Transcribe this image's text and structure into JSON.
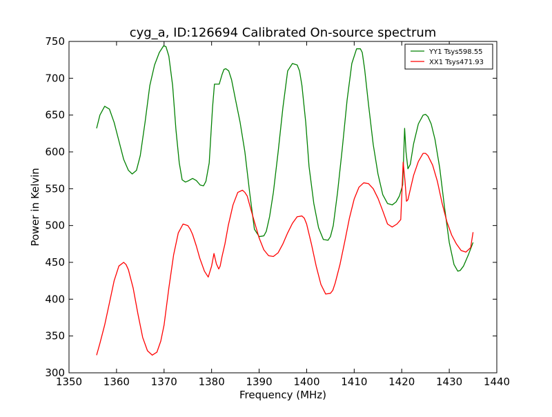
{
  "chart_data": {
    "type": "line",
    "title": "cyg_a, ID:126694 Calibrated On-source spectrum",
    "xlabel": "Frequency (MHz)",
    "ylabel": "Power in Kelvin",
    "xlim": [
      1350,
      1440
    ],
    "ylim": [
      300,
      750
    ],
    "xticks": [
      1350,
      1360,
      1370,
      1380,
      1390,
      1400,
      1410,
      1420,
      1430,
      1440
    ],
    "yticks": [
      300,
      350,
      400,
      450,
      500,
      550,
      600,
      650,
      700,
      750
    ],
    "grid": false,
    "legend_position": "top-right",
    "series": [
      {
        "name": "YY1 Tsys598.55",
        "color": "#008000",
        "x": [
          1355.8,
          1356.5,
          1357.5,
          1358.5,
          1359.5,
          1360.5,
          1361.5,
          1362.5,
          1363.3,
          1364.2,
          1365,
          1366,
          1367,
          1368,
          1369,
          1369.9,
          1370.4,
          1371,
          1371.8,
          1372.5,
          1373.2,
          1373.8,
          1374.5,
          1375.2,
          1376,
          1376.8,
          1377.6,
          1378.3,
          1378.8,
          1379.5,
          1380.2,
          1380.6,
          1381,
          1381.6,
          1382.2,
          1382.6,
          1383,
          1383.6,
          1384.2,
          1385,
          1386,
          1387,
          1388,
          1389,
          1390,
          1391,
          1391.5,
          1392.2,
          1393,
          1394,
          1395,
          1396,
          1397,
          1398,
          1398.5,
          1399,
          1399.8,
          1400.5,
          1401.5,
          1402.5,
          1403.5,
          1404.5,
          1405,
          1405.6,
          1406.5,
          1407.5,
          1408.5,
          1409.5,
          1410.5,
          1411.3,
          1411.7,
          1412.2,
          1413,
          1414,
          1415,
          1416,
          1417,
          1418,
          1418.8,
          1419.5,
          1420.2,
          1420.6,
          1420.9,
          1421.3,
          1421.8,
          1422.5,
          1423.5,
          1424.5,
          1425,
          1425.5,
          1426.2,
          1427,
          1428,
          1429,
          1430,
          1431,
          1431.8,
          1432.3,
          1433,
          1434,
          1435
        ],
        "y": [
          632,
          650,
          662,
          658,
          640,
          615,
          590,
          575,
          570,
          575,
          595,
          640,
          690,
          718,
          735,
          744,
          743,
          730,
          690,
          630,
          585,
          562,
          559,
          561,
          564,
          561,
          555,
          554,
          560,
          585,
          660,
          692,
          692,
          692,
          705,
          712,
          713,
          710,
          698,
          672,
          640,
          600,
          545,
          495,
          485,
          486,
          492,
          512,
          545,
          600,
          660,
          710,
          720,
          718,
          710,
          690,
          640,
          580,
          530,
          497,
          481,
          480,
          485,
          500,
          545,
          605,
          670,
          720,
          740,
          740,
          735,
          712,
          665,
          610,
          570,
          542,
          530,
          528,
          532,
          540,
          555,
          632,
          600,
          577,
          583,
          611,
          638,
          650,
          651,
          648,
          638,
          617,
          578,
          525,
          477,
          447,
          438,
          439,
          445,
          460,
          477
        ]
      },
      {
        "name": "XX1 Tsys471.93",
        "color": "#ff0000",
        "x": [
          1355.8,
          1356.5,
          1357.5,
          1358.5,
          1359.5,
          1360.5,
          1361.5,
          1362,
          1362.5,
          1363.5,
          1364.5,
          1365.5,
          1366.5,
          1367.5,
          1368.5,
          1369.3,
          1370,
          1371,
          1372,
          1373,
          1374,
          1375,
          1375.5,
          1376,
          1376.8,
          1377.5,
          1378.5,
          1379.3,
          1380,
          1380.5,
          1381,
          1381.5,
          1381.8,
          1382.2,
          1382.8,
          1383.5,
          1384.5,
          1385.5,
          1386.5,
          1387,
          1387.5,
          1388,
          1389,
          1390,
          1391,
          1392,
          1393,
          1394,
          1395,
          1396,
          1397,
          1398,
          1399,
          1399.5,
          1400,
          1401,
          1402,
          1403,
          1404,
          1405,
          1405.5,
          1406,
          1407,
          1408,
          1409,
          1410,
          1411,
          1412,
          1413,
          1414,
          1415,
          1416,
          1417,
          1418,
          1419,
          1419.8,
          1420.3,
          1420.7,
          1421,
          1421.3,
          1421.7,
          1422.5,
          1423.5,
          1424.5,
          1425,
          1425.5,
          1426.5,
          1427.5,
          1428.5,
          1429.5,
          1430.5,
          1431.5,
          1432.5,
          1433.5,
          1434.5,
          1435
        ],
        "y": [
          324,
          340,
          365,
          395,
          425,
          445,
          450,
          447,
          440,
          415,
          380,
          348,
          330,
          324,
          328,
          343,
          365,
          415,
          460,
          490,
          502,
          500,
          495,
          488,
          472,
          456,
          438,
          430,
          445,
          462,
          448,
          441,
          445,
          458,
          475,
          500,
          528,
          545,
          548,
          545,
          540,
          528,
          505,
          483,
          467,
          459,
          458,
          463,
          475,
          490,
          503,
          512,
          513,
          510,
          502,
          475,
          445,
          420,
          407,
          408,
          412,
          422,
          447,
          478,
          510,
          536,
          552,
          558,
          557,
          550,
          537,
          520,
          502,
          498,
          502,
          508,
          586,
          560,
          533,
          535,
          546,
          568,
          587,
          598,
          598,
          595,
          582,
          560,
          530,
          505,
          487,
          475,
          466,
          464,
          470,
          491
        ]
      }
    ]
  }
}
